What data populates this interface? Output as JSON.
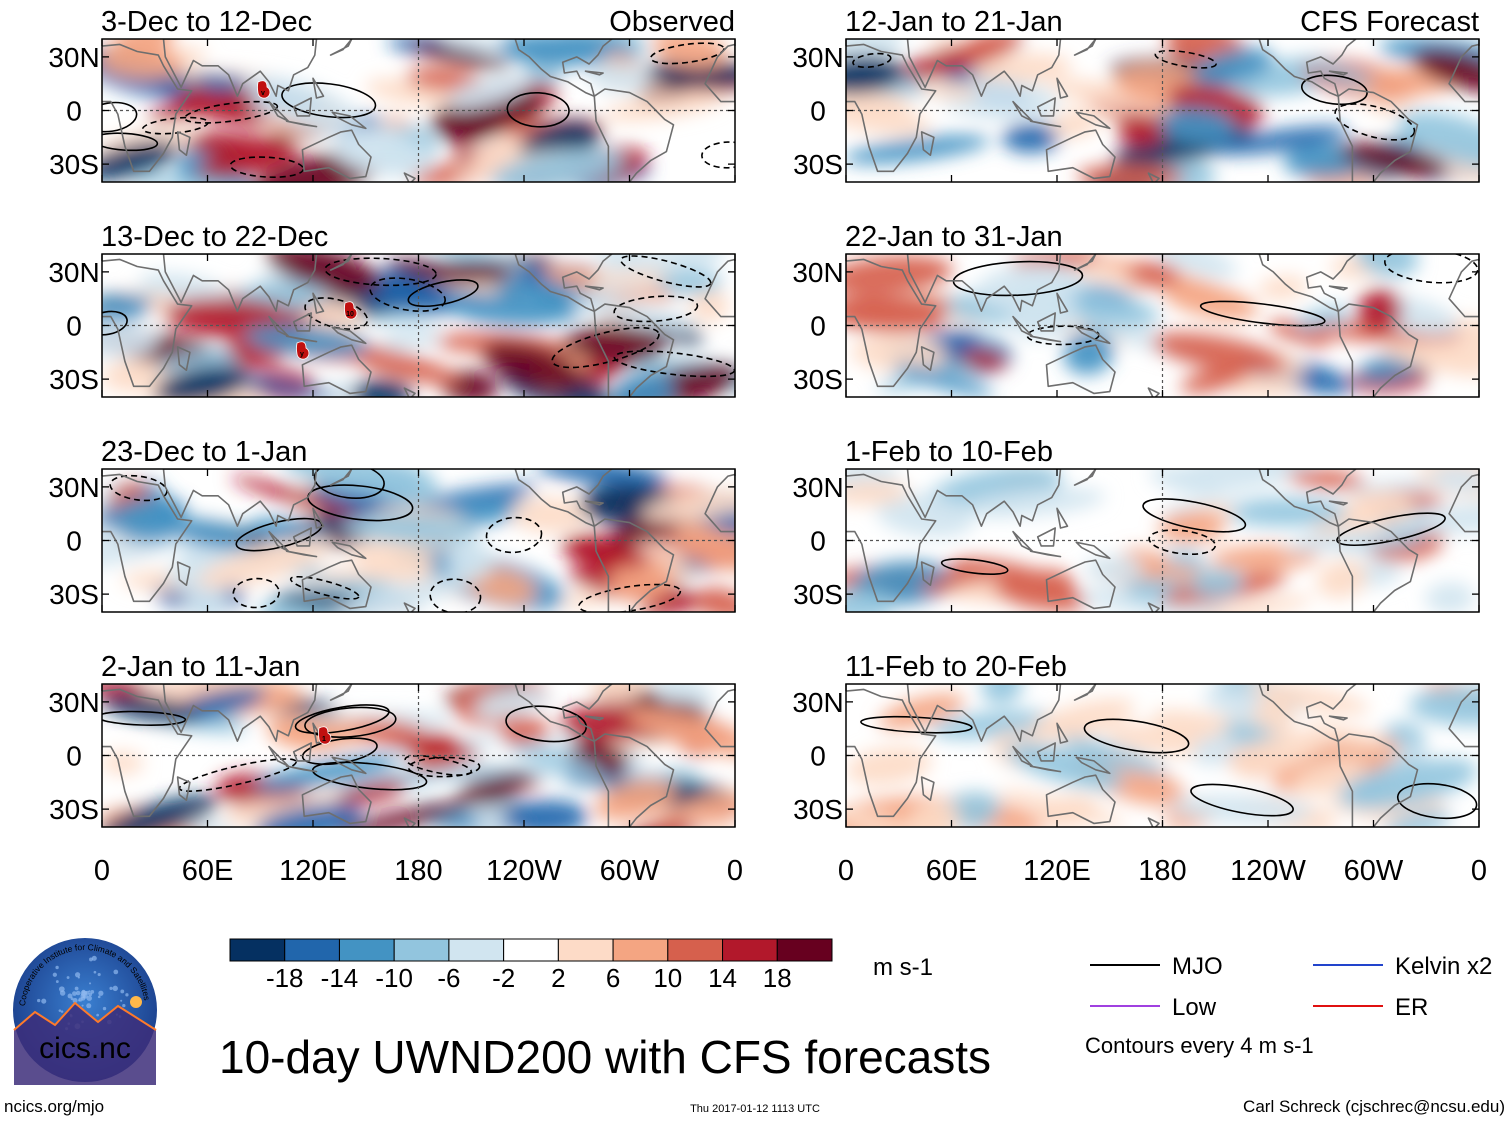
{
  "chart_data": {
    "type": "heatmap",
    "title": "10-day UWND200 with CFS forecasts",
    "variable": "UWND200",
    "units": "m s-1",
    "columns": [
      {
        "label": "Observed",
        "panels": [
          "3-Dec to 12-Dec",
          "13-Dec to 22-Dec",
          "23-Dec to 1-Jan",
          "2-Jan to 11-Jan"
        ]
      },
      {
        "label": "CFS Forecast",
        "panels": [
          "12-Jan to 21-Jan",
          "22-Jan to 31-Jan",
          "1-Feb to 10-Feb",
          "11-Feb to 20-Feb"
        ]
      }
    ],
    "xticks": [
      "0",
      "60E",
      "120E",
      "180",
      "120W",
      "60W",
      "0"
    ],
    "yticks": [
      "30N",
      "0",
      "30S"
    ],
    "xlim": [
      0,
      360
    ],
    "ylim": [
      -40,
      40
    ],
    "colorbar": {
      "ticks": [
        "-18",
        "-14",
        "-10",
        "-6",
        "-2",
        "2",
        "6",
        "10",
        "14",
        "18"
      ],
      "colors": [
        "#053061",
        "#2166ac",
        "#4393c3",
        "#92c5de",
        "#d1e5f0",
        "#ffffff",
        "#fddbc7",
        "#f4a582",
        "#d6604d",
        "#b2182b",
        "#67001f"
      ]
    },
    "legend": [
      {
        "label": "MJO",
        "color": "#000000"
      },
      {
        "label": "Kelvin x2",
        "color": "#2244cc"
      },
      {
        "label": "Low",
        "color": "#a040e0"
      },
      {
        "label": "ER",
        "color": "#e01010"
      }
    ],
    "contour_note": "Contours every 4 m s-1"
  },
  "footer": {
    "left": "ncics.org/mjo",
    "center": "Thu 2017-01-12 1113 UTC",
    "right": "Carl Schreck (cjschrec@ncsu.edu)"
  },
  "logo": {
    "text": "cics.nc",
    "ring_text": "Cooperative Institute for Climate and Satellites"
  }
}
